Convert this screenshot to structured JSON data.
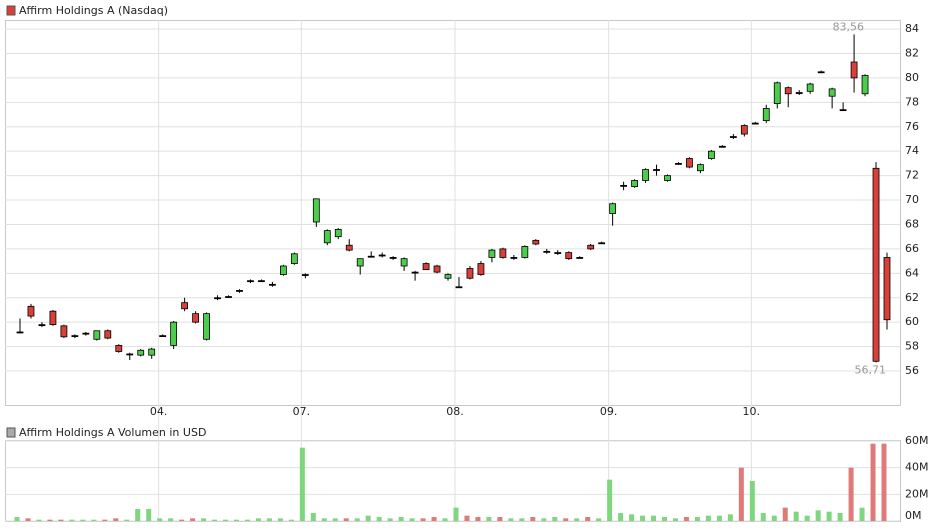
{
  "chart_data": [
    {
      "type": "candlestick",
      "title": "Affirm Holdings A (Nasdaq)",
      "categories": [
        null,
        null,
        null,
        null,
        null,
        null,
        null,
        null,
        null,
        null,
        null,
        null,
        null,
        "04.",
        null,
        null,
        null,
        null,
        null,
        null,
        null,
        null,
        null,
        null,
        null,
        null,
        "07.",
        null,
        null,
        null,
        null,
        null,
        null,
        null,
        null,
        null,
        null,
        null,
        null,
        null,
        "08.",
        null,
        null,
        null,
        null,
        null,
        null,
        null,
        null,
        null,
        null,
        null,
        null,
        null,
        "09.",
        null,
        null,
        null,
        null,
        null,
        null,
        null,
        null,
        null,
        null,
        null,
        null,
        "10.",
        null,
        null,
        null,
        null,
        null,
        null,
        null,
        null,
        null,
        null,
        null,
        null
      ],
      "open": [
        59.2,
        61.3,
        59.8,
        60.9,
        59.7,
        58.9,
        59.1,
        58.6,
        59.3,
        58.1,
        57.4,
        57.3,
        57.3,
        58.9,
        58.1,
        61.6,
        60.7,
        58.6,
        62.0,
        62.1,
        62.6,
        63.4,
        63.4,
        63.1,
        63.9,
        64.8,
        63.9,
        68.2,
        66.5,
        67.0,
        66.3,
        64.6,
        65.4,
        65.5,
        65.3,
        64.6,
        64.1,
        64.8,
        64.6,
        63.6,
        62.9,
        64.4,
        64.8,
        65.3,
        66.0,
        65.3,
        65.3,
        66.7,
        65.8,
        65.7,
        65.7,
        65.3,
        66.3,
        66.5,
        68.9,
        71.2,
        71.1,
        71.6,
        72.5,
        71.6,
        73.0,
        73.4,
        72.4,
        73.4,
        74.4,
        75.2,
        76.1,
        76.3,
        76.5,
        77.9,
        79.2,
        78.8,
        78.9,
        80.5,
        78.5,
        77.4,
        81.3,
        78.7,
        72.6,
        65.3
      ],
      "high": [
        60.3,
        61.5,
        60.0,
        61.0,
        59.8,
        59.0,
        59.2,
        59.3,
        59.4,
        58.2,
        57.5,
        57.8,
        57.9,
        59.0,
        60.1,
        62.0,
        60.9,
        60.8,
        62.2,
        62.2,
        62.7,
        63.5,
        63.5,
        63.3,
        64.7,
        65.7,
        64.0,
        70.1,
        67.6,
        67.7,
        66.8,
        65.2,
        65.8,
        65.7,
        65.4,
        65.3,
        64.2,
        64.9,
        64.7,
        64.0,
        63.7,
        64.6,
        65.0,
        66.0,
        66.1,
        65.5,
        66.3,
        66.8,
        66.0,
        65.9,
        65.8,
        65.4,
        66.4,
        66.6,
        69.8,
        71.5,
        71.7,
        72.6,
        72.9,
        72.1,
        73.1,
        73.5,
        73.0,
        74.1,
        74.5,
        75.4,
        76.2,
        76.4,
        77.8,
        79.7,
        79.3,
        79.0,
        79.6,
        80.6,
        79.2,
        78.0,
        83.56,
        80.3,
        73.1,
        65.7
      ],
      "low": [
        59.1,
        60.3,
        59.6,
        59.7,
        58.7,
        58.7,
        58.9,
        58.5,
        58.6,
        57.5,
        56.9,
        57.2,
        57.0,
        58.8,
        57.8,
        60.9,
        59.9,
        58.5,
        61.8,
        62.0,
        62.4,
        63.2,
        63.3,
        62.9,
        63.8,
        64.7,
        63.6,
        67.8,
        66.3,
        66.8,
        65.8,
        63.9,
        65.3,
        65.3,
        65.1,
        64.2,
        63.4,
        64.3,
        64.0,
        63.4,
        62.8,
        63.5,
        63.8,
        64.9,
        65.2,
        65.1,
        65.2,
        66.3,
        65.6,
        65.5,
        65.1,
        65.2,
        65.9,
        66.4,
        67.9,
        70.8,
        71.0,
        71.4,
        72.0,
        71.5,
        72.9,
        72.6,
        72.2,
        73.3,
        74.3,
        75.0,
        75.2,
        76.2,
        76.3,
        77.5,
        77.6,
        78.6,
        78.7,
        80.4,
        77.5,
        77.3,
        78.8,
        78.5,
        56.71,
        59.4
      ],
      "close": [
        59.2,
        60.5,
        59.8,
        59.8,
        58.8,
        58.9,
        59.1,
        59.3,
        58.7,
        57.6,
        57.4,
        57.7,
        57.8,
        58.9,
        60.0,
        61.1,
        60.0,
        60.7,
        62.0,
        62.1,
        62.6,
        63.4,
        63.4,
        63.1,
        64.6,
        65.6,
        63.9,
        70.1,
        67.5,
        67.6,
        65.9,
        65.2,
        65.4,
        65.5,
        65.3,
        65.2,
        64.1,
        64.3,
        64.1,
        63.9,
        62.9,
        63.6,
        63.9,
        65.9,
        65.3,
        65.3,
        66.2,
        66.4,
        65.8,
        65.7,
        65.2,
        65.3,
        66.0,
        66.5,
        69.7,
        71.2,
        71.6,
        72.5,
        72.5,
        72.0,
        73.0,
        72.7,
        72.9,
        74.0,
        74.4,
        75.2,
        75.4,
        76.3,
        77.5,
        79.6,
        78.7,
        78.8,
        79.5,
        80.5,
        79.1,
        77.4,
        80.0,
        80.2,
        56.8,
        60.2
      ],
      "up_color": "#4ccd4c",
      "down_color": "#d9403a",
      "ylim": [
        53.22,
        84.74
      ],
      "yticks": [
        56,
        58,
        60,
        62,
        64,
        66,
        68,
        70,
        72,
        74,
        76,
        78,
        80,
        82,
        84
      ],
      "grid": true,
      "annotations": [
        {
          "value": 83.56,
          "label": "83,56"
        },
        {
          "value": 56.71,
          "label": "56,71"
        }
      ]
    },
    {
      "type": "bar",
      "title": "Affirm Holdings A Volumen in USD",
      "values": [
        3,
        2,
        1,
        1,
        1,
        1,
        1,
        1,
        1,
        2,
        1,
        9,
        9,
        2,
        2,
        1,
        2,
        2,
        1,
        1,
        1,
        1,
        2,
        2,
        2,
        1,
        55,
        6,
        2,
        2,
        2,
        2,
        4,
        3,
        2,
        3,
        2,
        2,
        3,
        2,
        10,
        4,
        3,
        3,
        3,
        2,
        2,
        3,
        2,
        3,
        2,
        2,
        3,
        2,
        31,
        6,
        5,
        4,
        4,
        3,
        2,
        3,
        3,
        4,
        4,
        5,
        40,
        30,
        6,
        4,
        10,
        7,
        4,
        8,
        7,
        6,
        40,
        10,
        58,
        58
      ],
      "up_color": "#7ed67e",
      "down_color": "#e07a78",
      "ylim": [
        0,
        60.75
      ],
      "yticks": [
        {
          "value": 0,
          "label": "0M"
        },
        {
          "value": 20,
          "label": "20M"
        },
        {
          "value": 40,
          "label": "40M"
        },
        {
          "value": 60,
          "label": "60M"
        }
      ],
      "grid": true
    }
  ]
}
